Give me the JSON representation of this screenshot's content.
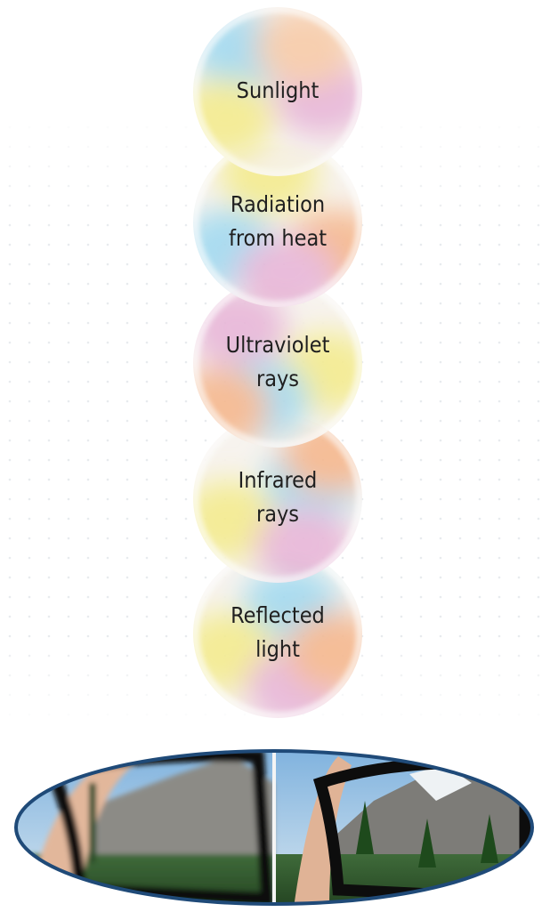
{
  "nodes": [
    {
      "lines": [
        "Sunlight"
      ]
    },
    {
      "lines": [
        "Radiation",
        "from heat"
      ]
    },
    {
      "lines": [
        "Ultraviolet",
        "rays"
      ]
    },
    {
      "lines": [
        "Infrared",
        "rays"
      ]
    },
    {
      "lines": [
        "Reflected",
        "light"
      ]
    }
  ]
}
